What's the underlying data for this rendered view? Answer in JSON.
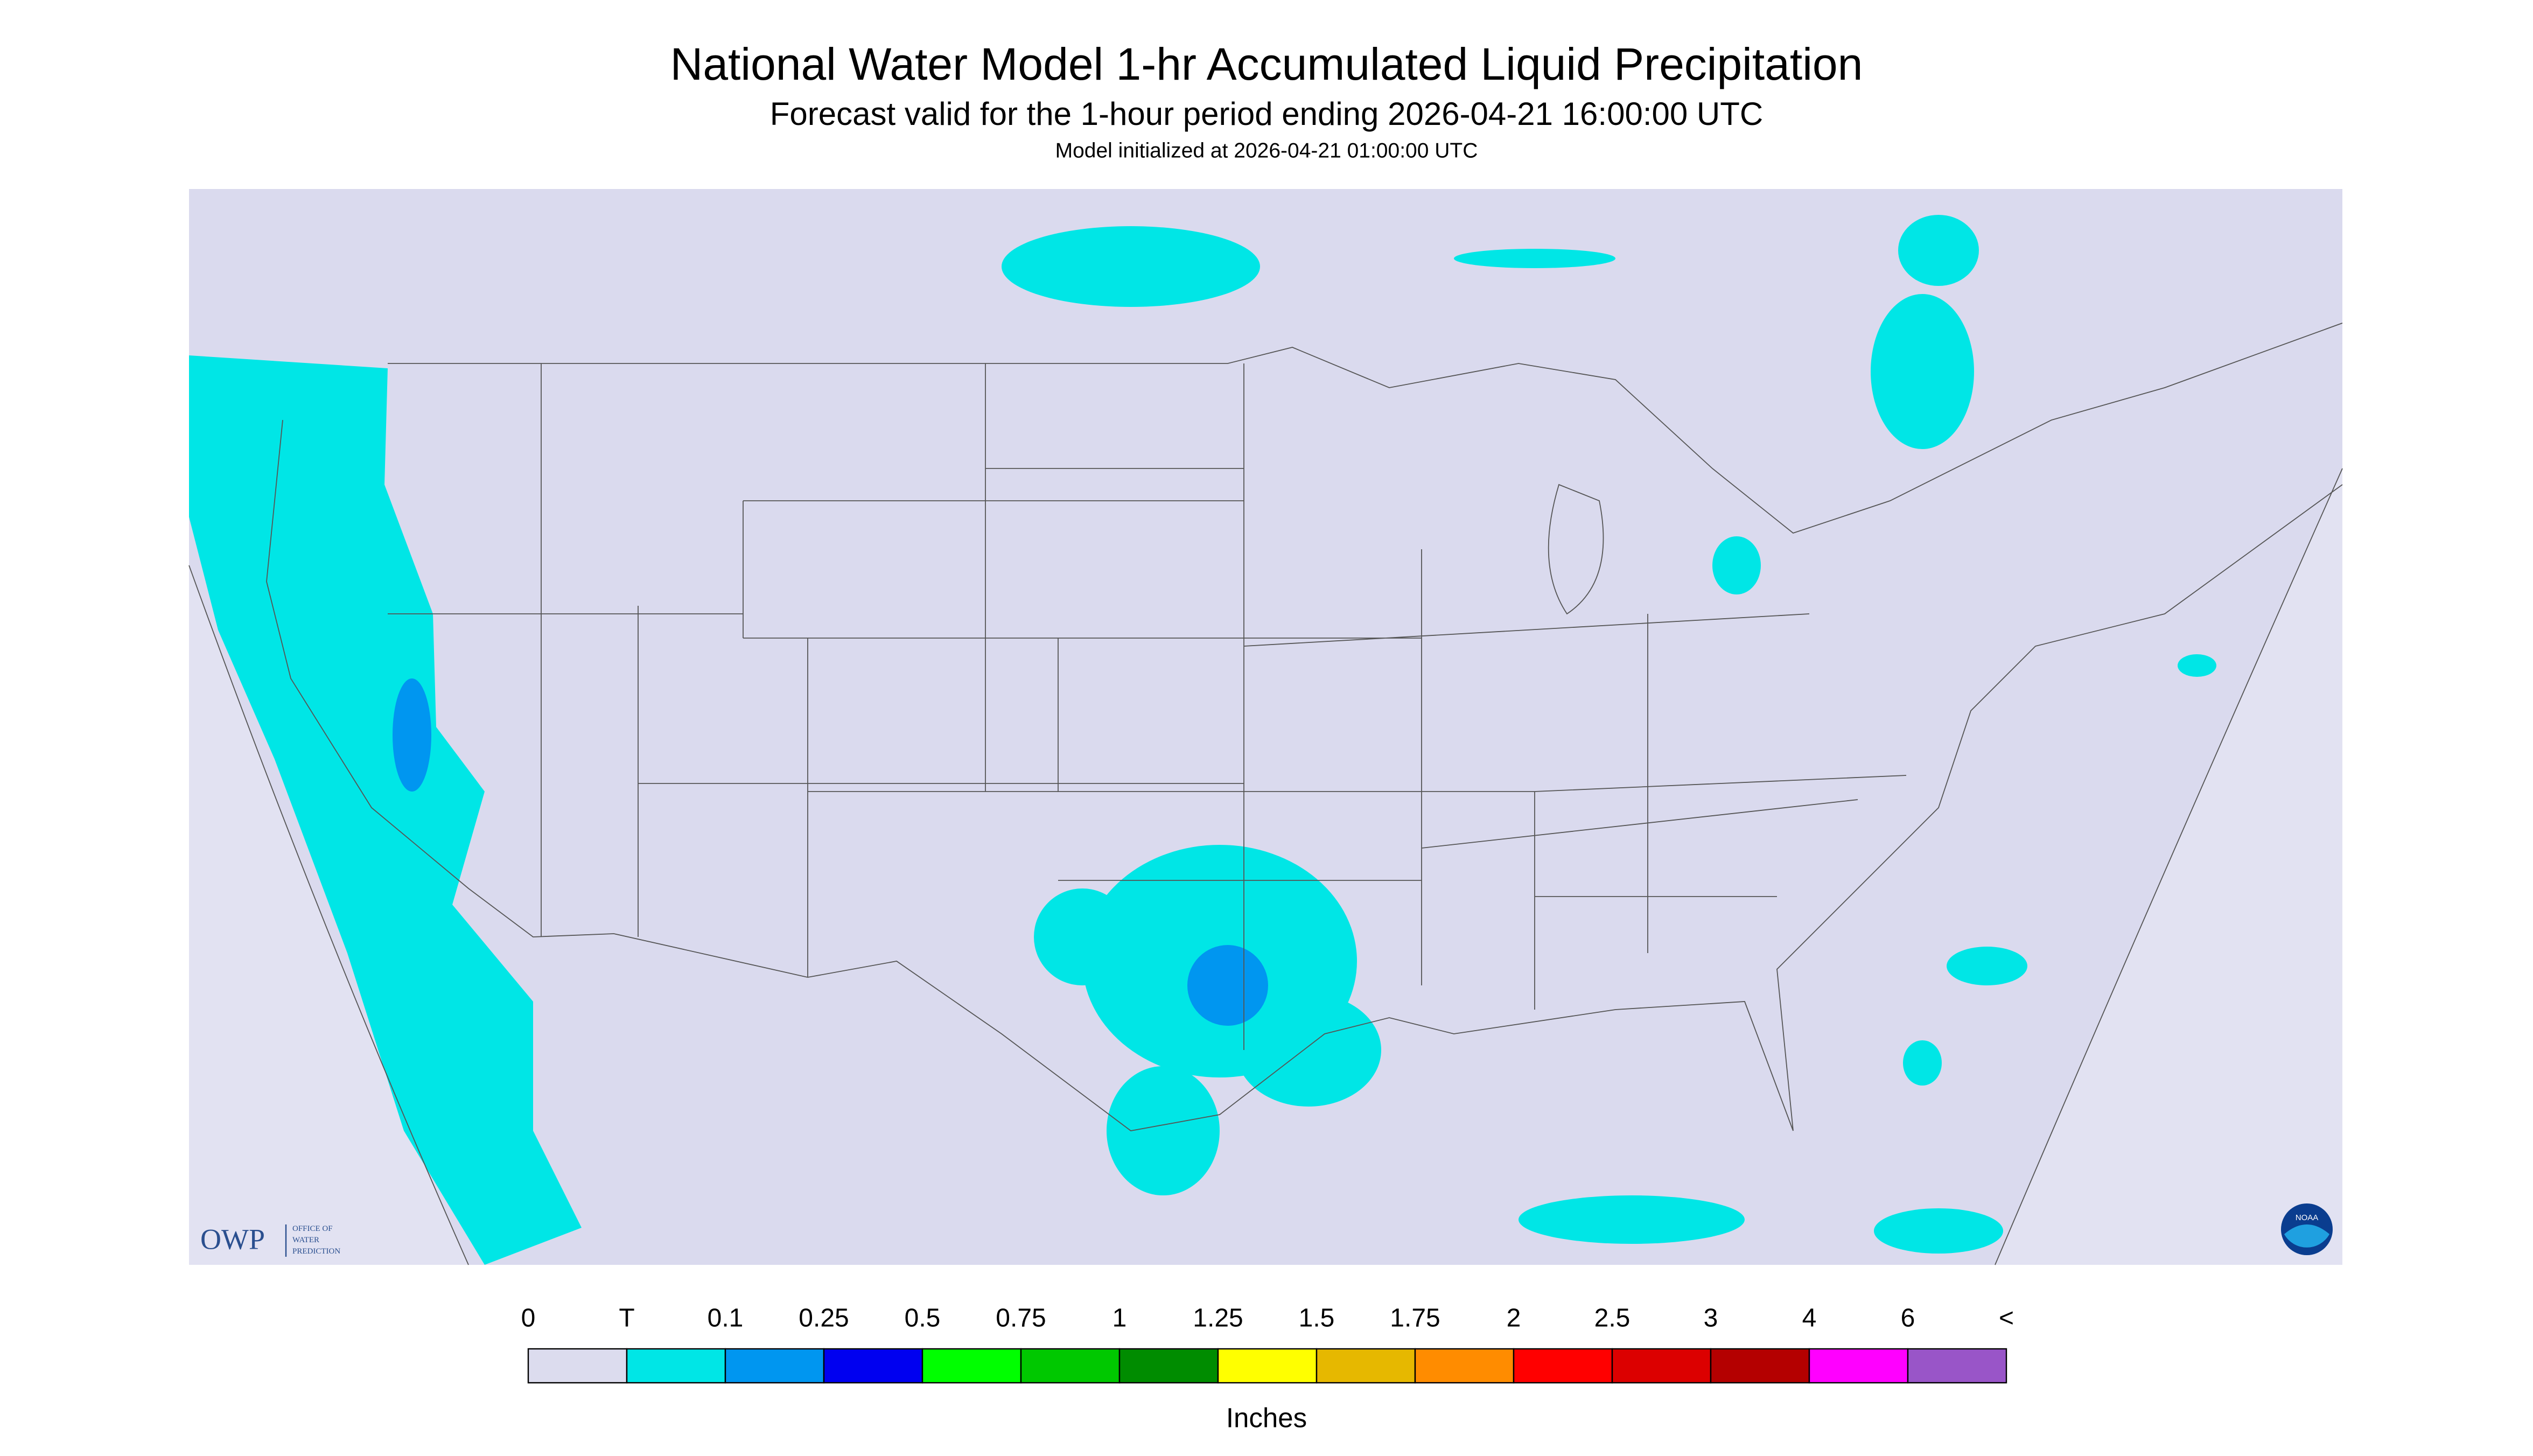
{
  "header": {
    "title": "National Water Model 1-hr Accumulated Liquid Precipitation",
    "subtitle": "Forecast valid for the 1-hour period ending 2026-04-21 16:00:00 UTC",
    "init": "Model initialized at 2026-04-21 01:00:00 UTC"
  },
  "logos": {
    "owp": "OWP",
    "owp_lines": [
      "OFFICE OF",
      "WATER",
      "PREDICTION"
    ],
    "noaa": "NOAA"
  },
  "legend": {
    "labels": [
      "0",
      "T",
      "0.1",
      "0.25",
      "0.5",
      "0.75",
      "1",
      "1.25",
      "1.5",
      "1.75",
      "2",
      "2.5",
      "3",
      "4",
      "6",
      "<"
    ],
    "colors": [
      "#dcdcee",
      "#00e6e6",
      "#0096f0",
      "#0000f0",
      "#00ff00",
      "#00c800",
      "#008c00",
      "#ffff00",
      "#e6b800",
      "#ff8c00",
      "#ff0000",
      "#dc0000",
      "#b40000",
      "#ff00ff",
      "#9955c8"
    ],
    "unit": "Inches"
  }
}
